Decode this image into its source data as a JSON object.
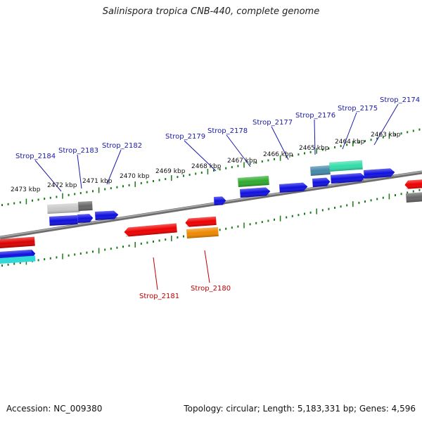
{
  "title": "Salinispora tropica CNB-440, complete genome",
  "footer": {
    "accession": "Accession: NC_009380",
    "summary": "Topology: circular; Length: 5,183,331 bp; Genes: 4,596"
  },
  "kbp_labels": [
    "2473 kbp",
    "2472 kbp",
    "2471 kbp",
    "2470 kbp",
    "2469 kbp",
    "2468 kbp",
    "2467 kbp",
    "2466 kbp",
    "2465 kbp",
    "2464 kbp",
    "2463 kbp"
  ],
  "gene_labels_top": [
    "Strop_2184",
    "Strop_2183",
    "Strop_2182",
    "Strop_2179",
    "Strop_2178",
    "Strop_2177",
    "Strop_2176",
    "Strop_2175",
    "Strop_2174"
  ],
  "gene_labels_bottom": [
    "Strop_2181",
    "Strop_2180"
  ],
  "colors": {
    "label_top": "#1a1aa8",
    "label_bottom": "#c00000",
    "tick": "#1a7a1a",
    "backbone": "#7a7a7a",
    "gene_blue": "#1010e0",
    "gene_red": "#e00000",
    "gene_green": "#2eaa2e",
    "gene_orange": "#ee8800",
    "gene_gray": "#666666",
    "gene_lightgray": "#c8c8c8",
    "gene_cyan": "#30d8d8",
    "gene_teal": "#4488aa",
    "gene_aqua": "#33ddaa"
  }
}
